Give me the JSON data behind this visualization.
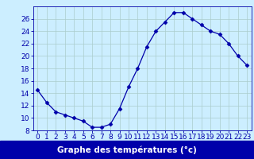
{
  "hours": [
    0,
    1,
    2,
    3,
    4,
    5,
    6,
    7,
    8,
    9,
    10,
    11,
    12,
    13,
    14,
    15,
    16,
    17,
    18,
    19,
    20,
    21,
    22,
    23
  ],
  "temps": [
    14.5,
    12.5,
    11.0,
    10.5,
    10.0,
    9.5,
    8.5,
    8.5,
    9.0,
    11.5,
    15.0,
    18.0,
    21.5,
    24.0,
    25.5,
    27.0,
    27.0,
    26.0,
    25.0,
    24.0,
    23.5,
    22.0,
    20.0,
    18.5
  ],
  "line_color": "#0000aa",
  "marker": "D",
  "marker_size": 2.5,
  "bg_color": "#cceeff",
  "grid_color": "#aacccc",
  "xlabel": "Graphe des températures (°c)",
  "xlabel_color": "#ffffff",
  "xlabel_bg": "#0000aa",
  "ylim": [
    8,
    28
  ],
  "yticks": [
    8,
    10,
    12,
    14,
    16,
    18,
    20,
    22,
    24,
    26
  ],
  "xlim": [
    -0.5,
    23.5
  ],
  "xticks": [
    0,
    1,
    2,
    3,
    4,
    5,
    6,
    7,
    8,
    9,
    10,
    11,
    12,
    13,
    14,
    15,
    16,
    17,
    18,
    19,
    20,
    21,
    22,
    23
  ],
  "tick_fontsize": 6.5,
  "xlabel_fontsize": 7.5
}
